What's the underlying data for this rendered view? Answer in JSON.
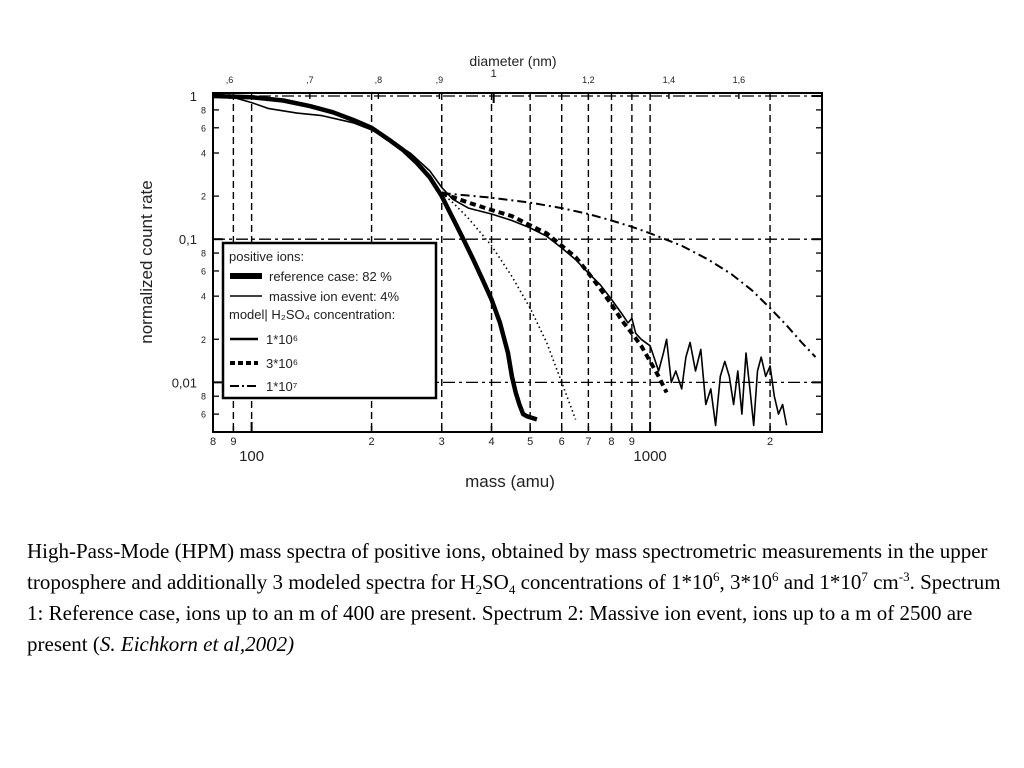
{
  "chart_data": {
    "type": "line",
    "xscale": "log",
    "yscale": "log",
    "xlim": [
      80,
      2700
    ],
    "ylim": [
      0.0045,
      1.05
    ],
    "xlabel": "mass (amu)",
    "ylabel": "normalized count rate",
    "top_axis_label": "diameter (nm)",
    "grid": true,
    "legend_position": "bottom-left",
    "x_major_tick_labels": [
      {
        "value": 100,
        "label": "100"
      },
      {
        "value": 1000,
        "label": "1000"
      }
    ],
    "x_minor_tick_labels": [
      {
        "value": 80,
        "label": "8"
      },
      {
        "value": 90,
        "label": "9"
      },
      {
        "value": 200,
        "label": "2"
      },
      {
        "value": 300,
        "label": "3"
      },
      {
        "value": 400,
        "label": "4"
      },
      {
        "value": 500,
        "label": "5"
      },
      {
        "value": 600,
        "label": "6"
      },
      {
        "value": 700,
        "label": "7"
      },
      {
        "value": 800,
        "label": "8"
      },
      {
        "value": 900,
        "label": "9"
      },
      {
        "value": 2000,
        "label": "2"
      }
    ],
    "y_major_tick_labels": [
      {
        "value": 1,
        "label": "1"
      },
      {
        "value": 0.1,
        "label": "0,1"
      },
      {
        "value": 0.01,
        "label": "0,01"
      }
    ],
    "y_minor_tick_labels": [
      {
        "value": 0.8,
        "label": "8"
      },
      {
        "value": 0.6,
        "label": "6"
      },
      {
        "value": 0.4,
        "label": "4"
      },
      {
        "value": 0.2,
        "label": "2"
      },
      {
        "value": 0.08,
        "label": "8"
      },
      {
        "value": 0.06,
        "label": "6"
      },
      {
        "value": 0.04,
        "label": "4"
      },
      {
        "value": 0.02,
        "label": "2"
      },
      {
        "value": 0.008,
        "label": "8"
      },
      {
        "value": 0.006,
        "label": "6"
      }
    ],
    "top_tick_labels": [
      {
        "value": 88,
        "label": ",6"
      },
      {
        "value": 140,
        "label": ",7"
      },
      {
        "value": 208,
        "label": ",8"
      },
      {
        "value": 296,
        "label": ",9"
      },
      {
        "value": 405,
        "label": "1"
      },
      {
        "value": 700,
        "label": "1,2"
      },
      {
        "value": 1115,
        "label": "1,4"
      },
      {
        "value": 1670,
        "label": "1,6"
      }
    ],
    "legend": {
      "heading": "positive ions:",
      "measured": [
        {
          "label": "reference case: 82 %",
          "style": "thick"
        },
        {
          "label": "massive ion event: 4%",
          "style": "thin"
        }
      ],
      "model_heading": "model| H₂SO₄ concentration:",
      "model": [
        {
          "label": "1*10⁶",
          "style": "dotted"
        },
        {
          "label": "3*10⁶",
          "style": "dashed"
        },
        {
          "label": "1*10⁷",
          "style": "dashdot"
        }
      ]
    },
    "series": [
      {
        "name": "reference case: 82 %",
        "style": "thick",
        "points": [
          [
            80,
            1.0
          ],
          [
            100,
            0.98
          ],
          [
            120,
            0.93
          ],
          [
            140,
            0.85
          ],
          [
            160,
            0.77
          ],
          [
            180,
            0.68
          ],
          [
            200,
            0.6
          ],
          [
            220,
            0.5
          ],
          [
            240,
            0.42
          ],
          [
            260,
            0.34
          ],
          [
            280,
            0.27
          ],
          [
            300,
            0.2
          ],
          [
            320,
            0.14
          ],
          [
            340,
            0.1
          ],
          [
            360,
            0.072
          ],
          [
            380,
            0.052
          ],
          [
            400,
            0.038
          ],
          [
            420,
            0.026
          ],
          [
            440,
            0.016
          ],
          [
            450,
            0.011
          ],
          [
            460,
            0.0085
          ],
          [
            470,
            0.007
          ],
          [
            480,
            0.006
          ],
          [
            490,
            0.0058
          ],
          [
            510,
            0.0056
          ],
          [
            520,
            0.0055
          ]
        ]
      },
      {
        "name": "massive ion event: 4%",
        "style": "thin",
        "points": [
          [
            80,
            1.0
          ],
          [
            90,
            0.98
          ],
          [
            100,
            0.9
          ],
          [
            110,
            0.82
          ],
          [
            130,
            0.76
          ],
          [
            150,
            0.73
          ],
          [
            180,
            0.65
          ],
          [
            200,
            0.58
          ],
          [
            220,
            0.5
          ],
          [
            250,
            0.4
          ],
          [
            280,
            0.3
          ],
          [
            300,
            0.23
          ],
          [
            320,
            0.19
          ],
          [
            350,
            0.165
          ],
          [
            400,
            0.15
          ],
          [
            450,
            0.135
          ],
          [
            500,
            0.12
          ],
          [
            550,
            0.105
          ],
          [
            600,
            0.087
          ],
          [
            650,
            0.072
          ],
          [
            700,
            0.058
          ],
          [
            750,
            0.048
          ],
          [
            800,
            0.038
          ],
          [
            850,
            0.03
          ],
          [
            880,
            0.026
          ],
          [
            900,
            0.028
          ],
          [
            920,
            0.022
          ],
          [
            950,
            0.02
          ],
          [
            1000,
            0.018
          ],
          [
            1050,
            0.012
          ],
          [
            1080,
            0.016
          ],
          [
            1100,
            0.02
          ],
          [
            1130,
            0.01
          ],
          [
            1160,
            0.012
          ],
          [
            1200,
            0.009
          ],
          [
            1230,
            0.015
          ],
          [
            1260,
            0.019
          ],
          [
            1300,
            0.012
          ],
          [
            1340,
            0.017
          ],
          [
            1380,
            0.007
          ],
          [
            1420,
            0.009
          ],
          [
            1460,
            0.005
          ],
          [
            1500,
            0.011
          ],
          [
            1540,
            0.014
          ],
          [
            1580,
            0.011
          ],
          [
            1620,
            0.007
          ],
          [
            1660,
            0.012
          ],
          [
            1700,
            0.006
          ],
          [
            1740,
            0.016
          ],
          [
            1780,
            0.009
          ],
          [
            1820,
            0.005
          ],
          [
            1860,
            0.012
          ],
          [
            1900,
            0.015
          ],
          [
            1950,
            0.011
          ],
          [
            2000,
            0.013
          ],
          [
            2050,
            0.008
          ],
          [
            2100,
            0.006
          ],
          [
            2150,
            0.007
          ],
          [
            2200,
            0.005
          ]
        ]
      },
      {
        "name": "1*10⁶",
        "style": "dotted",
        "points": [
          [
            300,
            0.21
          ],
          [
            320,
            0.18
          ],
          [
            350,
            0.14
          ],
          [
            400,
            0.09
          ],
          [
            450,
            0.055
          ],
          [
            500,
            0.033
          ],
          [
            550,
            0.019
          ],
          [
            600,
            0.01
          ],
          [
            650,
            0.0055
          ]
        ]
      },
      {
        "name": "3*10⁶",
        "style": "dashed",
        "points": [
          [
            300,
            0.21
          ],
          [
            350,
            0.18
          ],
          [
            400,
            0.16
          ],
          [
            450,
            0.145
          ],
          [
            500,
            0.125
          ],
          [
            550,
            0.11
          ],
          [
            600,
            0.09
          ],
          [
            650,
            0.075
          ],
          [
            700,
            0.058
          ],
          [
            750,
            0.045
          ],
          [
            800,
            0.035
          ],
          [
            850,
            0.027
          ],
          [
            900,
            0.022
          ],
          [
            950,
            0.018
          ],
          [
            1000,
            0.014
          ],
          [
            1050,
            0.011
          ],
          [
            1100,
            0.0085
          ]
        ]
      },
      {
        "name": "1*10⁷",
        "style": "dashdot",
        "points": [
          [
            300,
            0.21
          ],
          [
            400,
            0.195
          ],
          [
            500,
            0.18
          ],
          [
            600,
            0.165
          ],
          [
            700,
            0.15
          ],
          [
            800,
            0.135
          ],
          [
            900,
            0.122
          ],
          [
            1000,
            0.11
          ],
          [
            1200,
            0.09
          ],
          [
            1400,
            0.072
          ],
          [
            1600,
            0.057
          ],
          [
            1800,
            0.044
          ],
          [
            2000,
            0.033
          ],
          [
            2200,
            0.025
          ],
          [
            2400,
            0.019
          ],
          [
            2600,
            0.015
          ]
        ]
      }
    ]
  },
  "caption": {
    "part1": "High-Pass-Mode (HPM) mass spectra of positive ions, obtained by mass spectrometric measurements in the upper troposphere  and additionally 3 modeled spectra for H",
    "h2so4_sub1": "2",
    "h2so4_so": "SO",
    "h2so4_sub2": "4",
    "part2": " concentrations of 1*10",
    "exp1": "6",
    "part3": ", 3*10",
    "exp2": "6",
    "part4": " and 1*10",
    "exp3": "7",
    "part5": " cm",
    "exp4": "-3",
    "part6": ".  Spectrum 1: Reference case, ions up to an m of 400 are present. Spectrum 2: Massive ion event, ions up to a m of 2500 are present (",
    "citation_italic": "S. Eichkorn et al,2002)"
  }
}
